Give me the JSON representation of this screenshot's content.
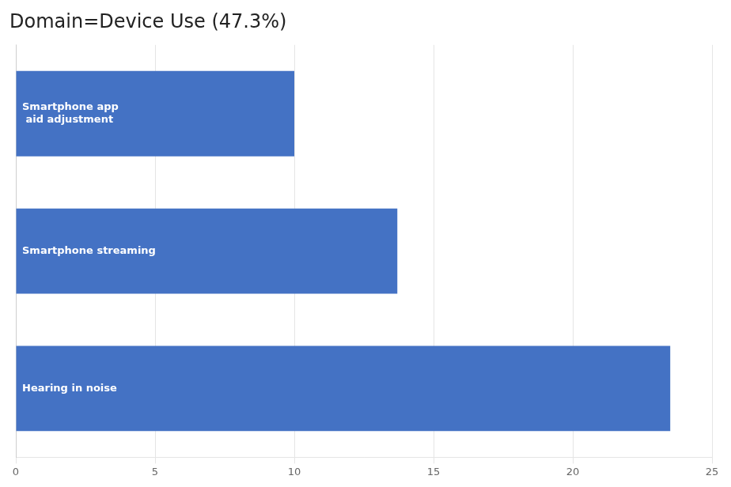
{
  "chart_data": {
    "type": "bar",
    "orientation": "horizontal",
    "title": "Domain=Device Use (47.3%)",
    "categories": [
      "Hearing in noise",
      "Smartphone streaming",
      "Smartphone app\n aid adjustment"
    ],
    "values": [
      23.5,
      13.7,
      10.0
    ],
    "color": "#4472C4",
    "xlim": [
      0,
      25
    ],
    "xticks": [
      0,
      5,
      10,
      15,
      20,
      25
    ],
    "grid": true,
    "tick_labels": "x"
  }
}
